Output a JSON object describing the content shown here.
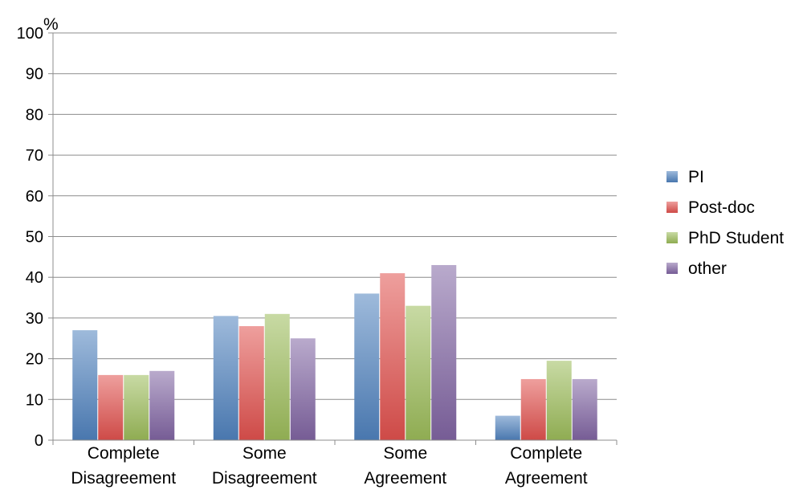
{
  "chart_data": {
    "type": "bar",
    "title": "",
    "xlabel": "",
    "ylabel": "%",
    "ylim": [
      0,
      100
    ],
    "yticks": [
      "0",
      "10",
      "20",
      "30",
      "40",
      "50",
      "60",
      "70",
      "80",
      "90",
      "100"
    ],
    "grid": true,
    "legend_position": "right",
    "categories": [
      [
        "Complete",
        "Disagreement"
      ],
      [
        "Some",
        "Disagreement"
      ],
      [
        "Some",
        "Agreement"
      ],
      [
        "Complete",
        "Agreement"
      ]
    ],
    "series": [
      {
        "name": "PI",
        "color": "#4F81BD",
        "values": [
          27,
          30.5,
          36,
          6
        ]
      },
      {
        "name": "Post-doc",
        "color": "#E0504D",
        "values": [
          16,
          28,
          41,
          15
        ]
      },
      {
        "name": "PhD Student",
        "color": "#9BBB59",
        "values": [
          16,
          31,
          33,
          19.5
        ]
      },
      {
        "name": "other",
        "color": "#8064A2",
        "values": [
          17,
          25,
          43,
          15
        ]
      }
    ]
  }
}
